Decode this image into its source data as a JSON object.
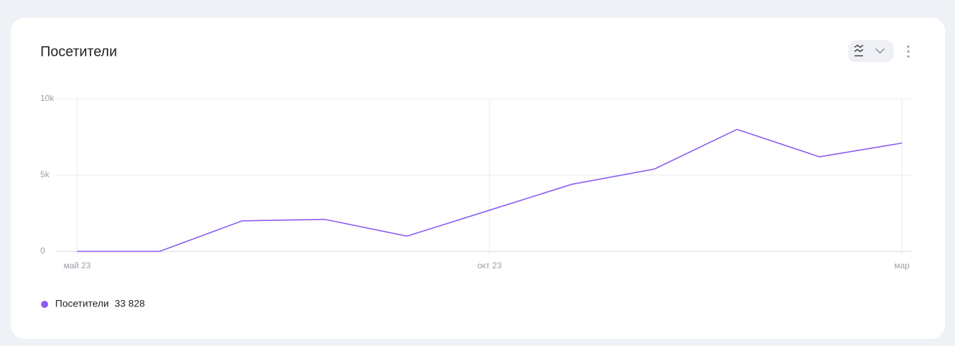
{
  "chart_data": {
    "type": "line",
    "title": "Посетители",
    "categories": [
      "май 23",
      null,
      null,
      null,
      null,
      "окт 23",
      null,
      null,
      null,
      null,
      "мар"
    ],
    "series": [
      {
        "name": "Посетители",
        "color": "#8a5cf0",
        "values": [
          0,
          0,
          2000,
          2100,
          1000,
          2700,
          4400,
          5400,
          8000,
          6200,
          7100
        ]
      }
    ],
    "legend_value": "33 828",
    "ylim": [
      0,
      10000
    ],
    "yticks": [
      0,
      {
        "value": 5000,
        "label": "5k"
      },
      {
        "value": 10000,
        "label": "10k"
      }
    ],
    "grid": true
  }
}
